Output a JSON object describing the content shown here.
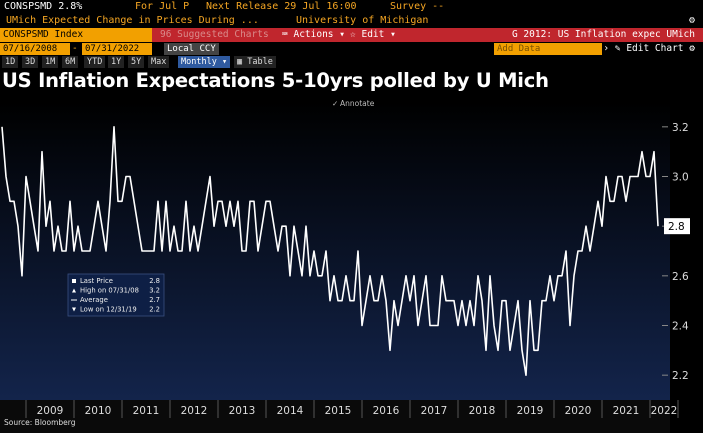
{
  "header": {
    "ticker": "CONSPSMD",
    "value": "2.8%",
    "period_label": "For Jul P",
    "next_release": "Next Release 29 Jul 16:00",
    "survey": "Survey --",
    "description": "UMich Expected Change in Prices During ...",
    "source": "University of Michigan"
  },
  "toolbar": {
    "index_field": "CONSPSMD Index",
    "suggested": "96 Suggested Charts",
    "actions": "Actions ▾",
    "edit": "Edit ▾",
    "graph_title": "G 2012: US Inflation expec UMich",
    "start_date": "07/16/2008",
    "end_date": "07/31/2022",
    "currency": "Local CCY",
    "add_data": "Add Data",
    "edit_chart": "Edit Chart"
  },
  "periods": [
    "1D",
    "3D",
    "1M",
    "6M",
    "YTD",
    "1Y",
    "5Y",
    "Max",
    "Monthly ▾",
    "Table"
  ],
  "selected_period": "Monthly ▾",
  "annotate_label": "Annotate",
  "footer": "Source: Bloomberg",
  "colors": {
    "accent": "#f2a000",
    "red_bar": "#c0262d",
    "plot_fill": "#0d1b3d",
    "line": "#ffffff"
  },
  "chart_data": {
    "type": "line",
    "title": "US Inflation Expectations 5-10yrs polled by U Mich",
    "x_start": "2008-07",
    "x_step": "monthly",
    "x_ticks": [
      "2009",
      "2010",
      "2011",
      "2012",
      "2013",
      "2014",
      "2015",
      "2016",
      "2017",
      "2018",
      "2019",
      "2020",
      "2021",
      "2022"
    ],
    "y_ticks": [
      "2.2",
      "2.4",
      "2.6",
      "2.8",
      "3.0",
      "3.2"
    ],
    "ylim": [
      2.1,
      3.3
    ],
    "last_value_label": "2.8",
    "grid": false,
    "legend": {
      "position": "mid-left",
      "entries": [
        {
          "label": "Last Price",
          "value": "2.8"
        },
        {
          "label": "High on 07/31/08",
          "value": "3.2"
        },
        {
          "label": "Average",
          "value": "2.7"
        },
        {
          "label": "Low on 12/31/19",
          "value": "2.2"
        }
      ]
    },
    "values": [
      3.2,
      3.0,
      2.9,
      2.9,
      2.8,
      2.6,
      3.0,
      2.9,
      2.8,
      2.7,
      3.1,
      2.8,
      2.9,
      2.7,
      2.8,
      2.7,
      2.7,
      2.9,
      2.7,
      2.8,
      2.7,
      2.7,
      2.7,
      2.8,
      2.9,
      2.8,
      2.7,
      2.9,
      3.2,
      2.9,
      2.9,
      3.0,
      3.0,
      2.9,
      2.8,
      2.7,
      2.7,
      2.7,
      2.7,
      2.9,
      2.7,
      2.9,
      2.7,
      2.8,
      2.7,
      2.7,
      2.9,
      2.7,
      2.8,
      2.7,
      2.8,
      2.9,
      3.0,
      2.8,
      2.9,
      2.9,
      2.8,
      2.9,
      2.8,
      2.9,
      2.7,
      2.7,
      2.9,
      2.9,
      2.7,
      2.8,
      2.9,
      2.9,
      2.8,
      2.7,
      2.8,
      2.8,
      2.6,
      2.8,
      2.7,
      2.6,
      2.8,
      2.6,
      2.7,
      2.6,
      2.6,
      2.7,
      2.5,
      2.6,
      2.5,
      2.5,
      2.6,
      2.5,
      2.5,
      2.7,
      2.4,
      2.5,
      2.6,
      2.5,
      2.5,
      2.6,
      2.5,
      2.3,
      2.5,
      2.4,
      2.5,
      2.6,
      2.5,
      2.6,
      2.4,
      2.5,
      2.6,
      2.4,
      2.4,
      2.4,
      2.6,
      2.5,
      2.5,
      2.5,
      2.4,
      2.5,
      2.4,
      2.5,
      2.4,
      2.6,
      2.5,
      2.3,
      2.6,
      2.4,
      2.3,
      2.5,
      2.5,
      2.3,
      2.4,
      2.5,
      2.3,
      2.2,
      2.5,
      2.3,
      2.3,
      2.5,
      2.5,
      2.6,
      2.5,
      2.6,
      2.6,
      2.7,
      2.4,
      2.6,
      2.7,
      2.7,
      2.8,
      2.7,
      2.8,
      2.9,
      2.8,
      3.0,
      2.9,
      2.9,
      3.0,
      3.0,
      2.9,
      3.0,
      3.0,
      3.0,
      3.1,
      3.0,
      3.0,
      3.1,
      2.8
    ]
  }
}
